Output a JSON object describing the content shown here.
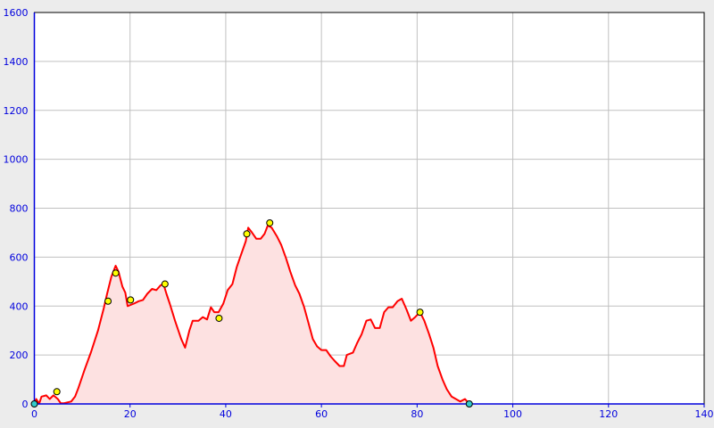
{
  "chart_data": {
    "type": "area",
    "title": "",
    "xlabel": "",
    "ylabel": "",
    "xlim": [
      0,
      140
    ],
    "ylim": [
      0,
      1600
    ],
    "xticks": [
      0,
      20,
      40,
      60,
      80,
      100,
      120,
      140
    ],
    "yticks": [
      0,
      200,
      400,
      600,
      800,
      1000,
      1200,
      1400,
      1600
    ],
    "grid": true,
    "colors": {
      "line": "#ff0000",
      "fill": "#fde1e1",
      "axis": "#0000dd",
      "grid": "#c0c0c0",
      "marker": "#ffff00",
      "endpoint": "#33cccc"
    },
    "x": [
      0,
      0.4,
      1,
      1.5,
      2.5,
      3.2,
      4,
      4.9,
      5.5,
      6.2,
      7.7,
      8.5,
      9.2,
      10.5,
      11.8,
      13.3,
      14.5,
      15.2,
      16.1,
      17,
      17.6,
      18.4,
      19,
      19.5,
      20.8,
      21.8,
      22.7,
      23.6,
      24.6,
      25.5,
      26.4,
      27,
      27.6,
      28.3,
      29.4,
      30.7,
      31.5,
      32.4,
      33.1,
      34.3,
      35.2,
      36.1,
      36.9,
      37.6,
      38.5,
      39.5,
      40.4,
      41.4,
      42.3,
      43.2,
      44.2,
      44.7,
      45.5,
      46.4,
      47.3,
      48.1,
      48.8,
      49.6,
      50.7,
      51.6,
      52.6,
      53.5,
      54.5,
      55.4,
      56.4,
      57.3,
      58.2,
      59.1,
      60,
      61,
      61.9,
      62.8,
      63.8,
      64.7,
      65.3,
      66.6,
      67.5,
      68.4,
      69.4,
      70.3,
      71.2,
      72.2,
      73.1,
      74,
      74.9,
      75.9,
      76.8,
      77.8,
      78.7,
      79.6,
      80.6,
      81.5,
      82.5,
      83.4,
      84.3,
      85.3,
      86.2,
      87.2,
      88.1,
      89,
      90,
      90.9
    ],
    "y": [
      0,
      20,
      1,
      30,
      35,
      20,
      35,
      20,
      3,
      3,
      10,
      30,
      65,
      140,
      210,
      300,
      390,
      450,
      520,
      565,
      540,
      480,
      455,
      400,
      410,
      420,
      425,
      450,
      470,
      465,
      485,
      490,
      450,
      410,
      340,
      265,
      230,
      300,
      340,
      340,
      355,
      345,
      395,
      375,
      375,
      410,
      465,
      490,
      560,
      610,
      665,
      720,
      700,
      675,
      675,
      695,
      730,
      720,
      685,
      650,
      595,
      540,
      485,
      450,
      395,
      330,
      265,
      235,
      220,
      220,
      195,
      175,
      155,
      155,
      200,
      210,
      250,
      285,
      340,
      345,
      310,
      310,
      375,
      395,
      395,
      420,
      430,
      385,
      340,
      355,
      375,
      340,
      285,
      230,
      155,
      100,
      60,
      30,
      20,
      10,
      20,
      0
    ],
    "waypoints": [
      [
        4.7,
        50
      ],
      [
        15.4,
        420
      ],
      [
        17,
        535
      ],
      [
        20.1,
        425
      ],
      [
        27.3,
        490
      ],
      [
        38.6,
        350
      ],
      [
        44.4,
        695
      ],
      [
        49.2,
        740
      ],
      [
        80.6,
        375
      ]
    ],
    "endpoints": [
      [
        0,
        0
      ],
      [
        90.9,
        0
      ]
    ]
  }
}
